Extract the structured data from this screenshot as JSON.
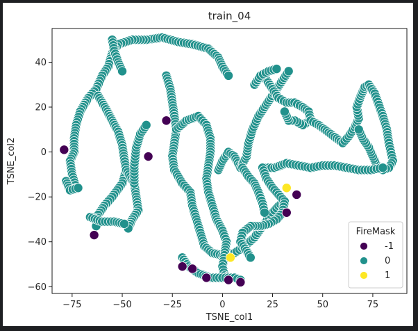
{
  "chart_data": {
    "type": "scatter",
    "title": "train_04",
    "xlabel": "TSNE_col1",
    "ylabel": "TSNE_col2",
    "xlim": [
      -85,
      92
    ],
    "ylim": [
      -63,
      55
    ],
    "xticks": [
      -75,
      -50,
      -25,
      0,
      25,
      50,
      75
    ],
    "yticks": [
      -60,
      -40,
      -20,
      0,
      20,
      40
    ],
    "grid": false,
    "legend": {
      "title": "FireMask",
      "placement": "bottom-right",
      "entries": [
        {
          "label": "-1",
          "color": "#440154"
        },
        {
          "label": "0",
          "color": "#21918c"
        },
        {
          "label": "1",
          "color": "#fde725"
        }
      ]
    },
    "series": [
      {
        "name": "-1",
        "color": "#440154",
        "points": [
          [
            -79,
            1
          ],
          [
            -64,
            -37
          ],
          [
            -37,
            -2
          ],
          [
            -28,
            14
          ],
          [
            -20,
            -51
          ],
          [
            -15,
            -52
          ],
          [
            -8,
            -56
          ],
          [
            3,
            -57
          ],
          [
            9,
            -58
          ],
          [
            37,
            -19
          ],
          [
            32,
            -27
          ]
        ]
      },
      {
        "name": "1",
        "color": "#fde725",
        "points": [
          [
            32,
            -16
          ],
          [
            4,
            -47
          ]
        ]
      },
      {
        "name": "0",
        "color": "#21918c",
        "paths": [
          [
            [
              -38,
              50
            ],
            [
              -30,
              51
            ],
            [
              -22,
              49
            ],
            [
              -15,
              48
            ],
            [
              -7,
              46
            ],
            [
              -2,
              42
            ],
            [
              0,
              38
            ],
            [
              3,
              34
            ]
          ],
          [
            [
              -38,
              50
            ],
            [
              -45,
              50
            ],
            [
              -52,
              48
            ],
            [
              -55,
              44
            ],
            [
              -57,
              38
            ],
            [
              -60,
              34
            ],
            [
              -63,
              28
            ],
            [
              -67,
              24
            ],
            [
              -71,
              18
            ],
            [
              -73,
              12
            ],
            [
              -74,
              6
            ],
            [
              -74,
              0
            ],
            [
              -76,
              -4
            ],
            [
              -75,
              -10
            ],
            [
              -73,
              -16
            ]
          ],
          [
            [
              -55,
              50
            ],
            [
              -54,
              45
            ],
            [
              -52,
              40
            ],
            [
              -50,
              36
            ]
          ],
          [
            [
              -62,
              25
            ],
            [
              -58,
              19
            ],
            [
              -55,
              14
            ],
            [
              -52,
              9
            ],
            [
              -50,
              3
            ],
            [
              -49,
              -3
            ],
            [
              -48,
              -8
            ],
            [
              -50,
              -14
            ],
            [
              -55,
              -20
            ],
            [
              -59,
              -24
            ],
            [
              -62,
              -28
            ],
            [
              -63,
              -33
            ]
          ],
          [
            [
              -48,
              -8
            ],
            [
              -44,
              -14
            ],
            [
              -43,
              -20
            ],
            [
              -42,
              -26
            ],
            [
              -45,
              -30
            ],
            [
              -47,
              -34
            ]
          ],
          [
            [
              -44,
              -14
            ],
            [
              -44,
              -6
            ],
            [
              -43,
              2
            ],
            [
              -41,
              8
            ],
            [
              -38,
              12
            ]
          ],
          [
            [
              -28,
              34
            ],
            [
              -26,
              28
            ],
            [
              -25,
              22
            ],
            [
              -24,
              16
            ],
            [
              -23,
              10
            ],
            [
              -24,
              4
            ],
            [
              -25,
              -2
            ],
            [
              -24,
              -8
            ],
            [
              -20,
              -14
            ],
            [
              -16,
              -18
            ],
            [
              -15,
              -24
            ],
            [
              -13,
              -30
            ],
            [
              -11,
              -36
            ],
            [
              -9,
              -42
            ],
            [
              -5,
              -45
            ],
            [
              0,
              -46
            ],
            [
              6,
              -45
            ],
            [
              11,
              -42
            ],
            [
              16,
              -38
            ],
            [
              20,
              -33
            ],
            [
              24,
              -28
            ],
            [
              28,
              -24
            ],
            [
              31,
              -22
            ]
          ],
          [
            [
              -23,
              10
            ],
            [
              -18,
              14
            ],
            [
              -12,
              16
            ],
            [
              -8,
              12
            ],
            [
              -6,
              6
            ],
            [
              -6,
              0
            ],
            [
              -7,
              -6
            ],
            [
              -8,
              -12
            ],
            [
              -7,
              -18
            ],
            [
              -5,
              -24
            ],
            [
              -3,
              -30
            ],
            [
              0,
              -35
            ],
            [
              2,
              -40
            ],
            [
              1,
              -46
            ],
            [
              0,
              -51
            ],
            [
              1,
              -55
            ],
            [
              4,
              -56
            ]
          ],
          [
            [
              -20,
              -47
            ],
            [
              -17,
              -51
            ],
            [
              -12,
              -54
            ],
            [
              -6,
              -56
            ],
            [
              0,
              -56
            ],
            [
              6,
              -56
            ],
            [
              9,
              -57
            ]
          ],
          [
            [
              -2,
              -8
            ],
            [
              0,
              -4
            ],
            [
              3,
              0
            ],
            [
              6,
              -2
            ],
            [
              9,
              -7
            ],
            [
              12,
              -2
            ],
            [
              13,
              4
            ],
            [
              15,
              10
            ],
            [
              18,
              16
            ],
            [
              21,
              20
            ],
            [
              24,
              24
            ],
            [
              27,
              28
            ],
            [
              30,
              32
            ],
            [
              33,
              36
            ]
          ],
          [
            [
              22,
              32
            ],
            [
              25,
              28
            ],
            [
              28,
              24
            ],
            [
              32,
              22
            ],
            [
              36,
              22
            ],
            [
              40,
              20
            ],
            [
              43,
              18
            ],
            [
              44,
              14
            ],
            [
              40,
              12
            ],
            [
              36,
              14
            ],
            [
              33,
              14
            ],
            [
              31,
              18
            ]
          ],
          [
            [
              44,
              14
            ],
            [
              48,
              12
            ],
            [
              51,
              10
            ],
            [
              54,
              8
            ],
            [
              57,
              6
            ],
            [
              60,
              4
            ],
            [
              63,
              7
            ],
            [
              66,
              11
            ],
            [
              68,
              15
            ],
            [
              67,
              20
            ],
            [
              69,
              25
            ],
            [
              71,
              29
            ],
            [
              73,
              30
            ]
          ],
          [
            [
              73,
              30
            ],
            [
              76,
              26
            ],
            [
              78,
              21
            ],
            [
              80,
              16
            ],
            [
              82,
              10
            ],
            [
              83,
              4
            ],
            [
              84,
              0
            ],
            [
              85,
              -4
            ],
            [
              83,
              -7
            ],
            [
              80,
              -8
            ],
            [
              77,
              -6
            ],
            [
              75,
              -2
            ],
            [
              73,
              2
            ],
            [
              70,
              6
            ],
            [
              68,
              10
            ]
          ],
          [
            [
              20,
              -7
            ],
            [
              26,
              -7
            ],
            [
              32,
              -5
            ],
            [
              38,
              -6
            ],
            [
              44,
              -7
            ],
            [
              50,
              -6
            ],
            [
              56,
              -6
            ],
            [
              62,
              -7
            ],
            [
              68,
              -8
            ],
            [
              74,
              -8
            ],
            [
              80,
              -7
            ]
          ],
          [
            [
              20,
              -7
            ],
            [
              22,
              -12
            ],
            [
              25,
              -16
            ],
            [
              28,
              -19
            ],
            [
              31,
              -22
            ],
            [
              30,
              -27
            ],
            [
              27,
              -30
            ],
            [
              23,
              -32
            ],
            [
              19,
              -33
            ],
            [
              14,
              -33
            ],
            [
              10,
              -36
            ],
            [
              9,
              -40
            ],
            [
              12,
              -44
            ],
            [
              14,
              -47
            ]
          ],
          [
            [
              10,
              -7
            ],
            [
              13,
              -11
            ],
            [
              16,
              -14
            ],
            [
              18,
              -18
            ],
            [
              20,
              -23
            ],
            [
              21,
              -27
            ]
          ],
          [
            [
              -78,
              -13
            ],
            [
              -76,
              -17
            ],
            [
              -72,
              -16
            ]
          ],
          [
            [
              -66,
              -29
            ],
            [
              -60,
              -31
            ],
            [
              -54,
              -31
            ],
            [
              -49,
              -32
            ]
          ],
          [
            [
              16,
              30
            ],
            [
              19,
              34
            ],
            [
              23,
              36
            ],
            [
              27,
              37
            ]
          ]
        ]
      }
    ]
  }
}
